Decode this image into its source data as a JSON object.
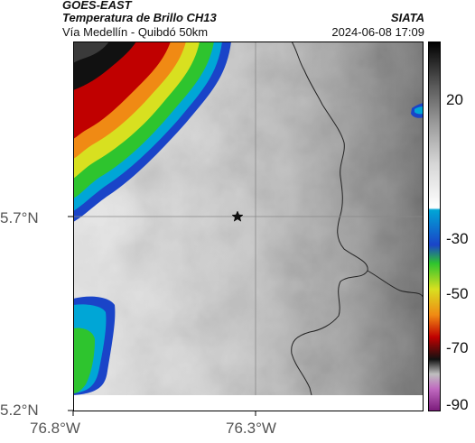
{
  "header": {
    "satellite": "GOES-EAST",
    "product": "Temperatura de Brillo CH13",
    "route": "Vía Medellín - Quibdó 50km",
    "org": "SIATA",
    "timestamp": "2024-06-08 17:09"
  },
  "axes": {
    "y_ticks": [
      "5.7°N",
      "5.2°N"
    ],
    "x_ticks": [
      "76.8°W",
      "76.3°W"
    ]
  },
  "colorbar": {
    "ticks": [
      "20",
      "-30",
      "-50",
      "-70",
      "-90"
    ]
  },
  "colors": {
    "cloud_cold": "#c00000",
    "cloud_mid": "#2ec42e",
    "cloud_cool": "#00a6d6",
    "frame": "#000000"
  }
}
